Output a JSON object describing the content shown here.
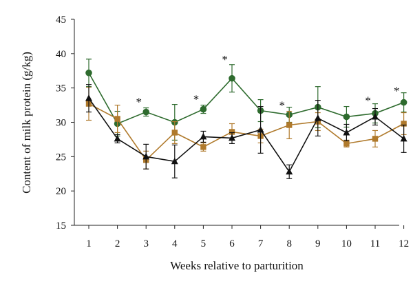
{
  "chart_data": {
    "type": "line",
    "title": "",
    "xlabel": "Weeks relative to parturition",
    "ylabel": "Content of milk protein (g/kg)",
    "ylim": [
      15,
      45
    ],
    "yticks": [
      15,
      20,
      25,
      30,
      35,
      40,
      45
    ],
    "x": [
      1,
      2,
      3,
      4,
      5,
      6,
      7,
      8,
      9,
      10,
      11,
      12
    ],
    "xticks": [
      "1",
      "2",
      "3",
      "4",
      "5",
      "6",
      "7",
      "8",
      "9",
      "10",
      "11",
      "12"
    ],
    "grid": false,
    "legend": "none",
    "series": [
      {
        "marker": "circle",
        "color": "#2e6b2e",
        "values": [
          37.2,
          29.8,
          31.5,
          30.0,
          31.9,
          36.4,
          31.7,
          31.1,
          32.2,
          30.8,
          31.3,
          32.9
        ],
        "errors": [
          2.0,
          1.8,
          0.6,
          2.6,
          0.6,
          2.0,
          1.6,
          1.1,
          3.0,
          1.5,
          1.4,
          1.4
        ]
      },
      {
        "marker": "square",
        "color": "#b07a2c",
        "values": [
          32.7,
          30.5,
          24.5,
          28.5,
          26.4,
          28.6,
          28.0,
          29.6,
          30.1,
          26.9,
          27.6,
          29.8
        ],
        "errors": [
          2.4,
          2.0,
          1.3,
          1.6,
          0.6,
          1.2,
          1.0,
          2.0,
          1.3,
          0.5,
          1.2,
          1.6
        ]
      },
      {
        "marker": "triangle",
        "color": "#111111",
        "values": [
          33.5,
          27.6,
          25.0,
          24.3,
          27.9,
          27.7,
          28.9,
          22.8,
          30.6,
          28.5,
          30.8,
          27.6
        ],
        "errors": [
          2.0,
          0.6,
          1.8,
          2.4,
          0.8,
          0.8,
          3.4,
          1.0,
          2.6,
          1.2,
          1.2,
          2.0
        ]
      }
    ],
    "annotations": [
      {
        "text": "*",
        "x": 2.75,
        "y": 33.0
      },
      {
        "text": "*",
        "x": 4.75,
        "y": 33.4
      },
      {
        "text": "*",
        "x": 5.75,
        "y": 39.2
      },
      {
        "text": "*",
        "x": 7.75,
        "y": 32.5
      },
      {
        "text": "*",
        "x": 10.75,
        "y": 33.2
      },
      {
        "text": "*",
        "x": 11.75,
        "y": 34.6
      }
    ]
  }
}
